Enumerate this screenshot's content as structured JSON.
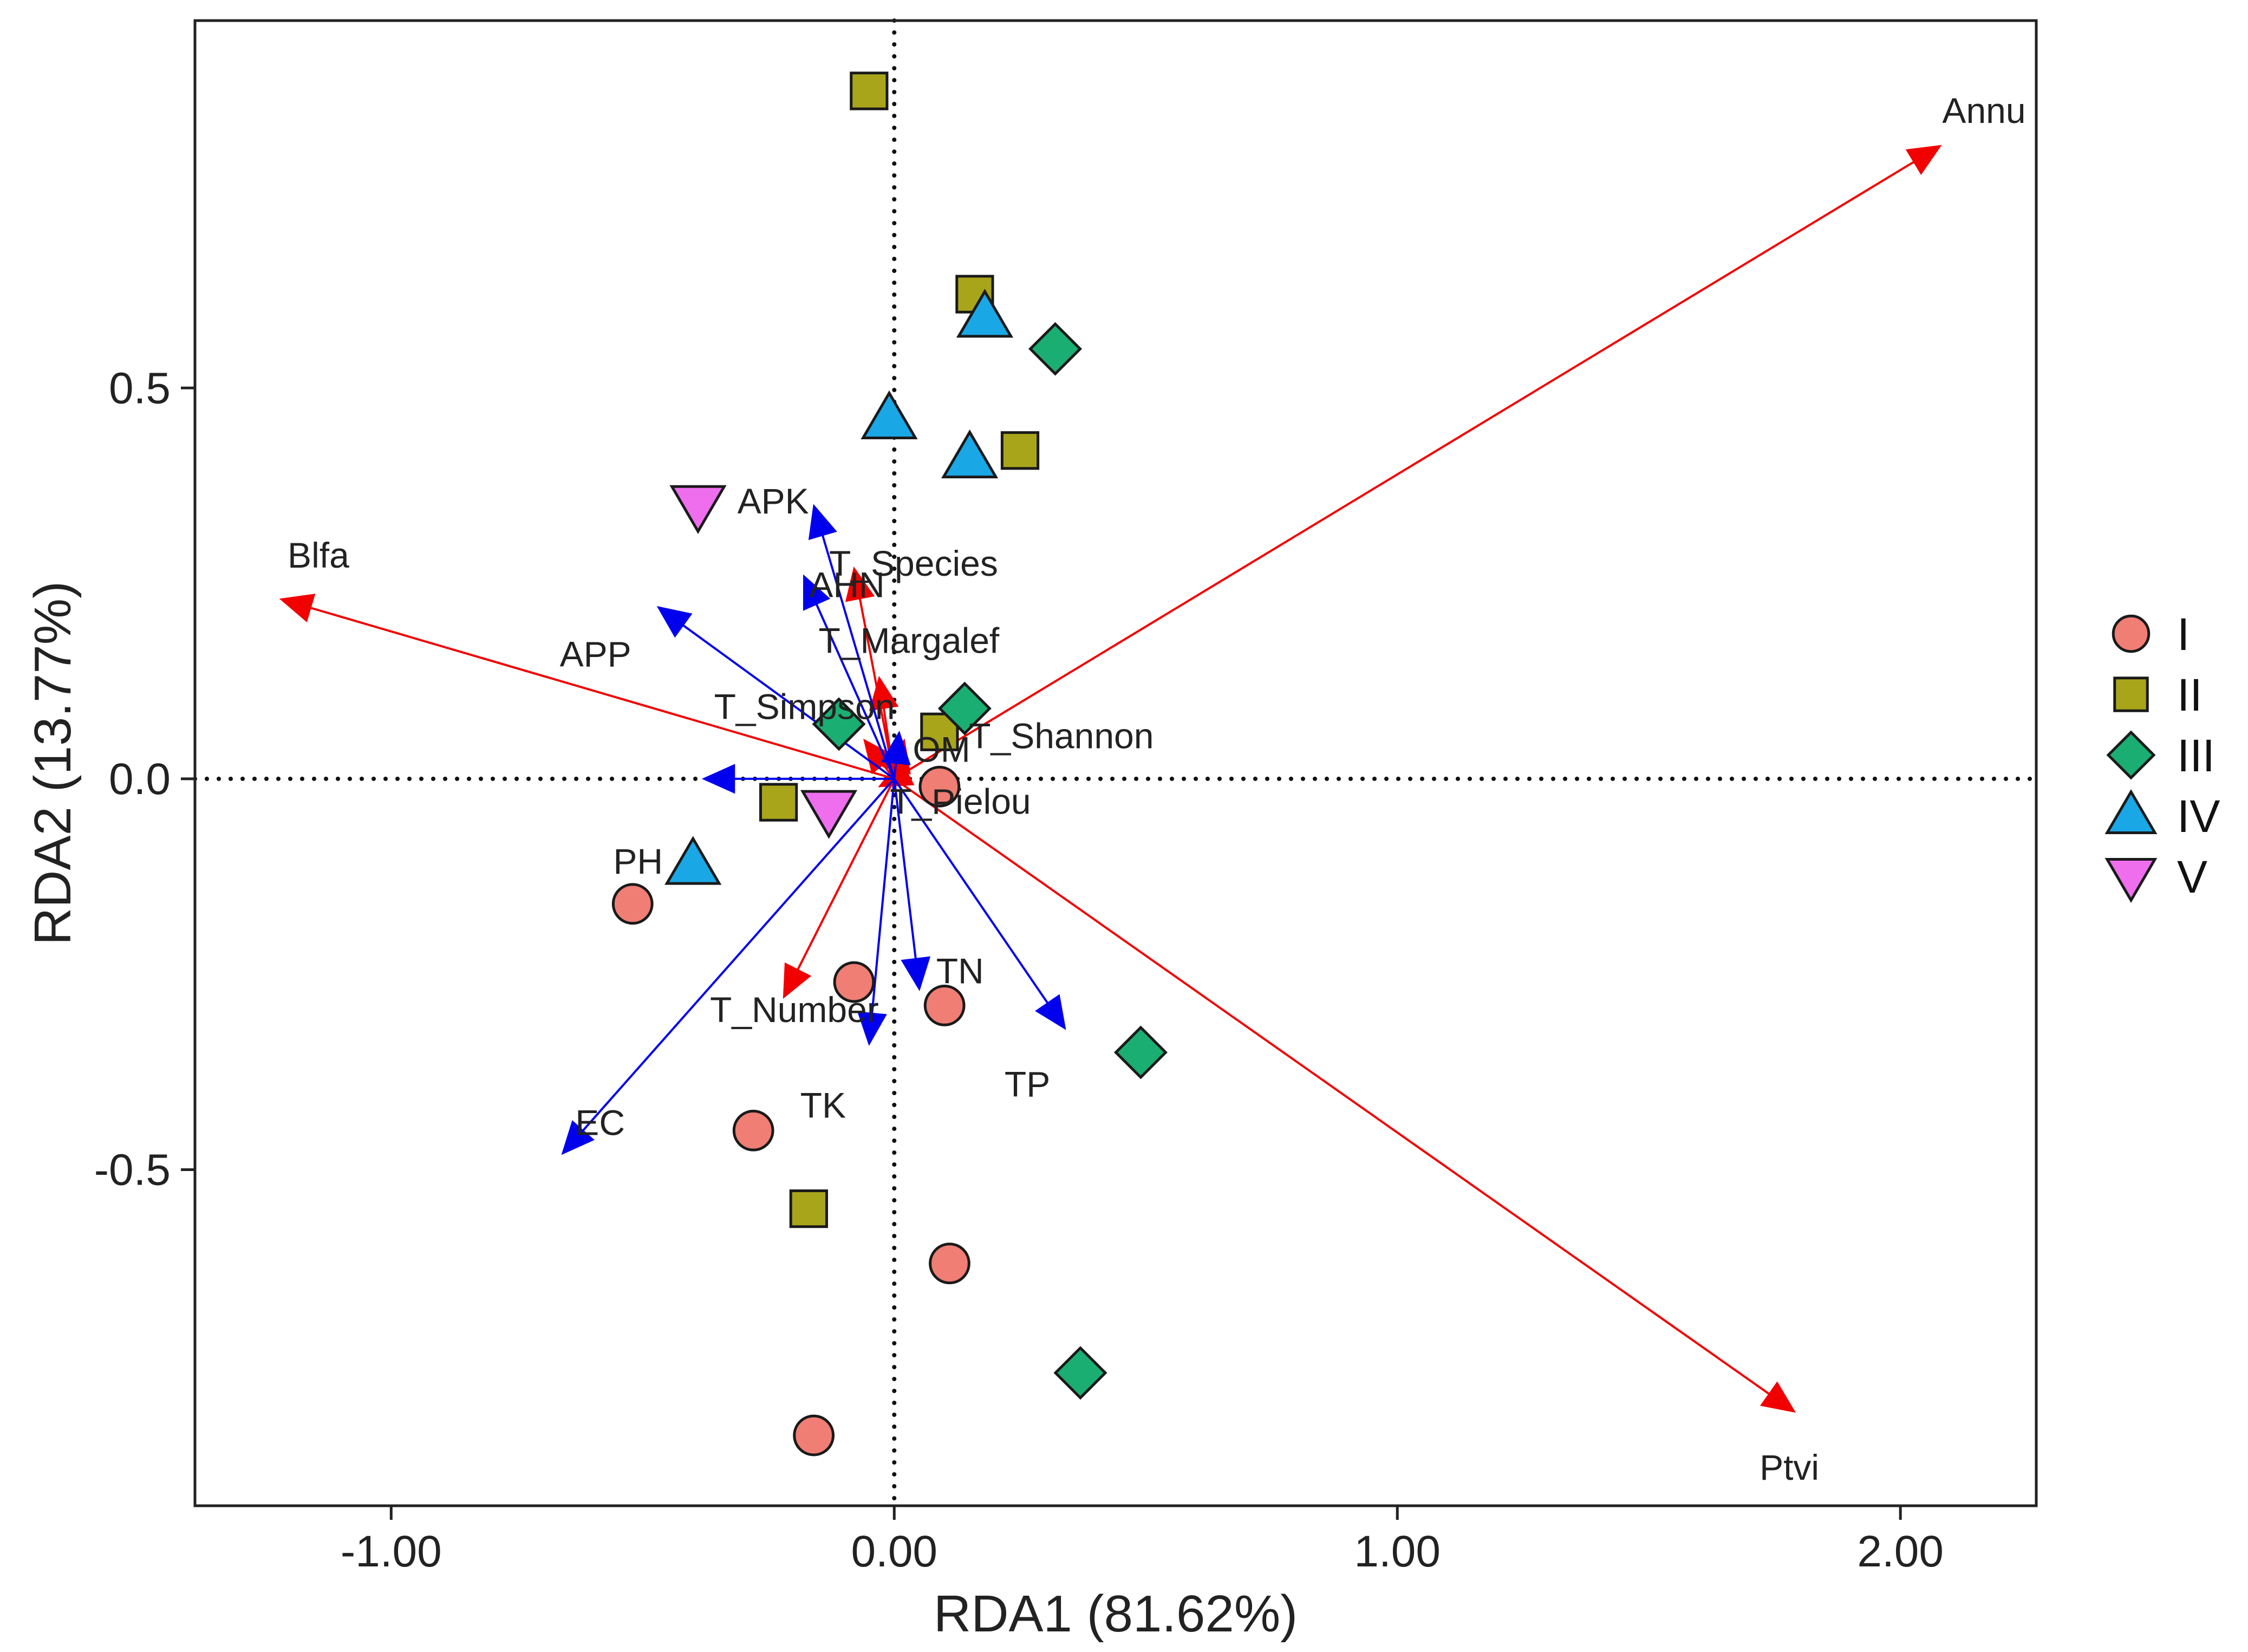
{
  "chart_data": {
    "type": "scatter",
    "subtype": "rda-biplot",
    "title": "",
    "xlabel": "RDA1 (81.62%)",
    "ylabel": "RDA2 (13.77%)",
    "xlim": [
      -1.39,
      2.27
    ],
    "ylim": [
      -0.93,
      0.97
    ],
    "x_ticks": [
      {
        "value": -1.0,
        "label": "-1.00"
      },
      {
        "value": 0.0,
        "label": "0.00"
      },
      {
        "value": 1.0,
        "label": "1.00"
      },
      {
        "value": 2.0,
        "label": "2.00"
      }
    ],
    "y_ticks": [
      {
        "value": 0.5,
        "label": "0.5"
      },
      {
        "value": 0.0,
        "label": "0.0"
      },
      {
        "value": -0.5,
        "label": "-0.5"
      }
    ],
    "grid": false,
    "zero_lines": "dotted",
    "legend_position": "right",
    "series": [
      {
        "name": "I",
        "marker": "circle",
        "color": "#F07E74",
        "points": [
          [
            0.09,
            -0.01
          ],
          [
            -0.52,
            -0.16
          ],
          [
            -0.08,
            -0.26
          ],
          [
            0.1,
            -0.29
          ],
          [
            -0.28,
            -0.45
          ],
          [
            0.11,
            -0.62
          ],
          [
            -0.16,
            -0.84
          ]
        ]
      },
      {
        "name": "II",
        "marker": "square",
        "color": "#A9A51A",
        "points": [
          [
            -0.05,
            0.88
          ],
          [
            0.16,
            0.62
          ],
          [
            0.25,
            0.42
          ],
          [
            0.09,
            0.06
          ],
          [
            -0.23,
            -0.03
          ],
          [
            -0.17,
            -0.55
          ]
        ]
      },
      {
        "name": "III",
        "marker": "diamond",
        "color": "#1BAE72",
        "points": [
          [
            0.32,
            0.55
          ],
          [
            0.14,
            0.09
          ],
          [
            -0.11,
            0.07
          ],
          [
            0.49,
            -0.35
          ],
          [
            0.37,
            -0.76
          ]
        ]
      },
      {
        "name": "IV",
        "marker": "triangle-up",
        "color": "#1AA7E6",
        "points": [
          [
            0.18,
            0.59
          ],
          [
            -0.01,
            0.46
          ],
          [
            0.15,
            0.41
          ],
          [
            -0.4,
            -0.11
          ]
        ]
      },
      {
        "name": "V",
        "marker": "triangle-down",
        "color": "#EE6EEE",
        "points": [
          [
            -0.39,
            0.35
          ],
          [
            -0.13,
            -0.04
          ]
        ]
      }
    ],
    "arrows": [
      {
        "label": "Annu",
        "group": "species",
        "x": 2.08,
        "y": 0.81
      },
      {
        "label": "Blfa",
        "group": "species",
        "x": -1.22,
        "y": 0.23
      },
      {
        "label": "Ptvi",
        "group": "species",
        "x": 1.79,
        "y": -0.81
      },
      {
        "label": "T_Species",
        "group": "species",
        "x": -0.08,
        "y": 0.27
      },
      {
        "label": "T_Margalef",
        "group": "species",
        "x": -0.03,
        "y": 0.13
      },
      {
        "label": "T_Shannon",
        "group": "species",
        "x": 0.02,
        "y": 0.05
      },
      {
        "label": "T_Simpson",
        "group": "species",
        "x": -0.06,
        "y": 0.05
      },
      {
        "label": "T_Pielou",
        "group": "species",
        "x": -0.03,
        "y": -0.01
      },
      {
        "label": "T_Number",
        "group": "species",
        "x": -0.22,
        "y": -0.28
      },
      {
        "label": "APK",
        "group": "environment",
        "x": -0.16,
        "y": 0.35
      },
      {
        "label": "AHN",
        "group": "environment",
        "x": -0.18,
        "y": 0.26
      },
      {
        "label": "APP",
        "group": "environment",
        "x": -0.47,
        "y": 0.22
      },
      {
        "label": "OM",
        "group": "environment",
        "x": 0.01,
        "y": 0.06
      },
      {
        "label": "PH",
        "group": "environment",
        "x": -0.38,
        "y": 0.0
      },
      {
        "label": "TN",
        "group": "environment",
        "x": 0.05,
        "y": -0.27
      },
      {
        "label": "TK",
        "group": "environment",
        "x": -0.05,
        "y": -0.34
      },
      {
        "label": "TP",
        "group": "environment",
        "x": 0.34,
        "y": -0.32
      },
      {
        "label": "EC",
        "group": "environment",
        "x": -0.66,
        "y": -0.48
      }
    ],
    "arrow_colors": {
      "species": "#F20000",
      "environment": "#0000EE"
    }
  }
}
